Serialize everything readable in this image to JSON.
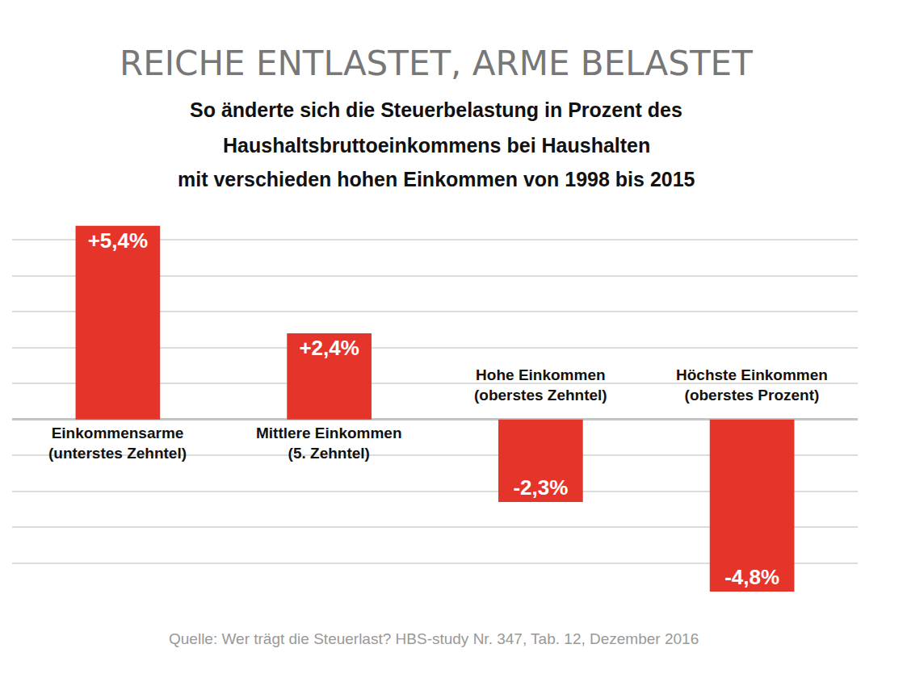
{
  "chart_data": {
    "type": "bar",
    "title": "REICHE ENTLASTET, ARME BELASTET",
    "subtitle": [
      "So änderte sich die Steuerbelastung in Prozent des",
      "Haushaltsbruttoeinkommens bei Haushalten",
      "mit verschieden hohen Einkommen von 1998 bis 2015"
    ],
    "source": "Quelle: Wer trägt die Steuerlast? HBS-study Nr. 347, Tab. 12, Dezember 2016",
    "categories": [
      "Einkommensarme (unterstes Zehntel)",
      "Mittlere Einkommen (5. Zehntel)",
      "Hohe Einkommen (oberstes Zehntel)",
      "Höchste Einkommen (oberstes Prozent)"
    ],
    "values": [
      5.4,
      2.4,
      -2.3,
      -4.8
    ],
    "value_labels": [
      "+5,4%",
      "+2,4%",
      "-2,3%",
      "-4,8%"
    ],
    "color": "#e5352a",
    "ylim": [
      -5,
      6
    ],
    "yticks": [
      -5,
      -4,
      -3,
      -2,
      -1,
      0,
      1,
      2,
      3,
      4,
      5,
      6
    ],
    "grid": true,
    "data_labels": true,
    "tick_labels": false
  }
}
